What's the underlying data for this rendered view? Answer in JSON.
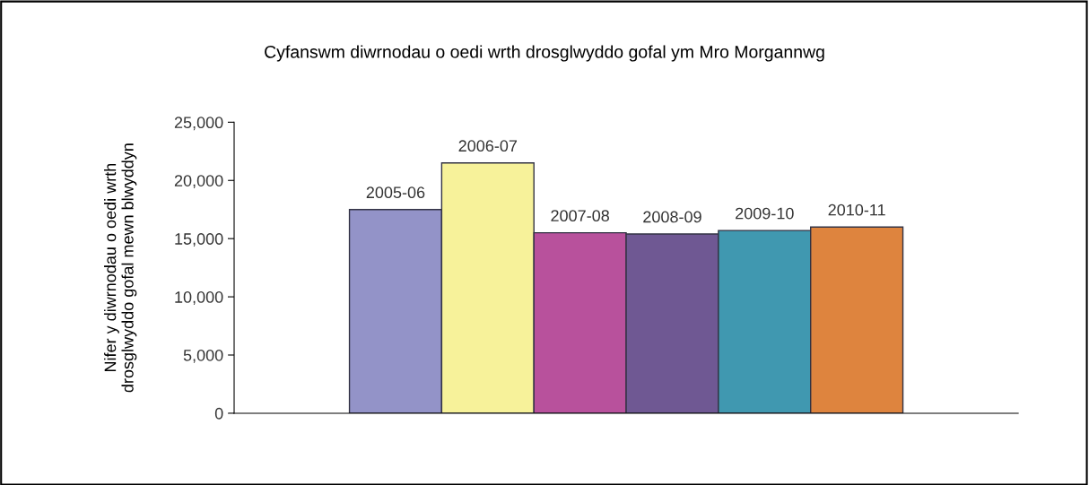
{
  "chart_data": {
    "type": "bar",
    "title": "Cyfanswm diwrnodau o oedi wrth drosglwyddo gofal ym Mro Morgannwg",
    "ylabel": "Nifer y diwrnodau o oedi wrth\ndrosglwyddo gofal mewn blwyddyn",
    "categories": [
      "2005-06",
      "2006-07",
      "2007-08",
      "2008-09",
      "2009-10",
      "2010-11"
    ],
    "values": [
      17500,
      21500,
      15500,
      15400,
      15700,
      16000
    ],
    "colors": [
      "#9393c8",
      "#f7f29a",
      "#b8519c",
      "#6f5893",
      "#4098b0",
      "#de843e"
    ],
    "ylim": [
      0,
      25000
    ],
    "yticks": [
      {
        "value": 0,
        "label": "0"
      },
      {
        "value": 5000,
        "label": "5,000"
      },
      {
        "value": 10000,
        "label": "10,000"
      },
      {
        "value": 15000,
        "label": "15,000"
      },
      {
        "value": 20000,
        "label": "20,000"
      },
      {
        "value": 25000,
        "label": "25,000"
      }
    ],
    "grid": false,
    "legend": false
  }
}
